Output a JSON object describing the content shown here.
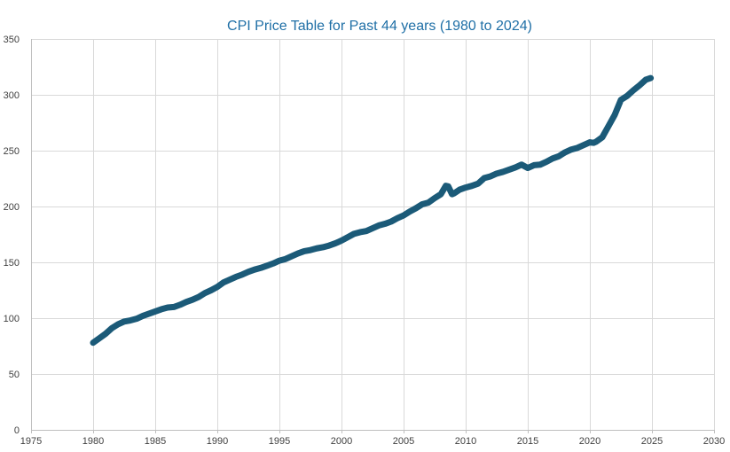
{
  "chart_data": {
    "type": "line",
    "title": "CPI Price Table for Past 44 years (1980 to 2024)",
    "xlabel": "",
    "ylabel": "",
    "xlim": [
      1975,
      2030
    ],
    "ylim": [
      0,
      350
    ],
    "x_ticks": [
      1975,
      1980,
      1985,
      1990,
      1995,
      2000,
      2005,
      2010,
      2015,
      2020,
      2025,
      2030
    ],
    "y_ticks": [
      0,
      50,
      100,
      150,
      200,
      250,
      300,
      350
    ],
    "x_tick_labels": [
      "1975",
      "1980",
      "1985",
      "1990",
      "1995",
      "2000",
      "2005",
      "2010",
      "2015",
      "2020",
      "2025",
      "2030"
    ],
    "y_tick_labels": [
      "0",
      "50",
      "100",
      "150",
      "200",
      "250",
      "300",
      "350"
    ],
    "grid": true,
    "legend": "none",
    "series": [
      {
        "name": "CPI",
        "color": "#1b5a78",
        "x": [
          1980.0,
          1980.5,
          1981.0,
          1981.5,
          1982.0,
          1982.5,
          1983.0,
          1983.5,
          1984.0,
          1984.5,
          1985.0,
          1985.5,
          1986.0,
          1986.5,
          1987.0,
          1987.5,
          1988.0,
          1988.5,
          1989.0,
          1989.5,
          1990.0,
          1990.5,
          1991.0,
          1991.5,
          1992.0,
          1992.5,
          1993.0,
          1993.5,
          1994.0,
          1994.5,
          1995.0,
          1995.5,
          1996.0,
          1996.5,
          1997.0,
          1997.5,
          1998.0,
          1998.5,
          1999.0,
          1999.5,
          2000.0,
          2000.5,
          2001.0,
          2001.5,
          2002.0,
          2002.5,
          2003.0,
          2003.5,
          2004.0,
          2004.5,
          2005.0,
          2005.5,
          2006.0,
          2006.5,
          2007.0,
          2007.5,
          2008.0,
          2008.4,
          2008.6,
          2008.9,
          2009.1,
          2009.5,
          2010.0,
          2010.5,
          2011.0,
          2011.5,
          2012.0,
          2012.5,
          2013.0,
          2013.5,
          2014.0,
          2014.5,
          2015.0,
          2015.5,
          2016.0,
          2016.5,
          2017.0,
          2017.5,
          2018.0,
          2018.5,
          2019.0,
          2019.5,
          2020.0,
          2020.3,
          2020.5,
          2021.0,
          2021.5,
          2022.0,
          2022.5,
          2023.0,
          2023.5,
          2024.0,
          2024.5,
          2024.9
        ],
        "values": [
          78.0,
          82.0,
          86.0,
          91.0,
          94.5,
          97.0,
          98.0,
          99.5,
          102.0,
          104.0,
          106.0,
          108.0,
          109.5,
          110.0,
          112.0,
          114.5,
          116.5,
          119.0,
          122.5,
          125.0,
          128.0,
          132.0,
          134.5,
          137.0,
          139.0,
          141.5,
          143.5,
          145.0,
          147.0,
          149.0,
          151.5,
          153.0,
          155.5,
          158.0,
          160.0,
          161.0,
          162.5,
          163.5,
          165.0,
          167.0,
          169.5,
          172.5,
          175.5,
          177.0,
          178.0,
          180.5,
          183.0,
          184.5,
          186.5,
          189.5,
          192.0,
          195.5,
          198.5,
          202.0,
          203.5,
          207.5,
          211.0,
          218.5,
          218.0,
          211.0,
          212.0,
          215.0,
          217.0,
          218.5,
          220.5,
          225.5,
          227.0,
          229.5,
          231.0,
          233.0,
          235.0,
          237.5,
          234.5,
          237.0,
          237.5,
          240.0,
          243.0,
          245.0,
          248.5,
          251.0,
          252.5,
          255.0,
          257.5,
          257.0,
          258.0,
          262.0,
          272.0,
          282.0,
          295.5,
          299.0,
          304.0,
          308.5,
          313.5,
          315.0
        ]
      }
    ]
  }
}
